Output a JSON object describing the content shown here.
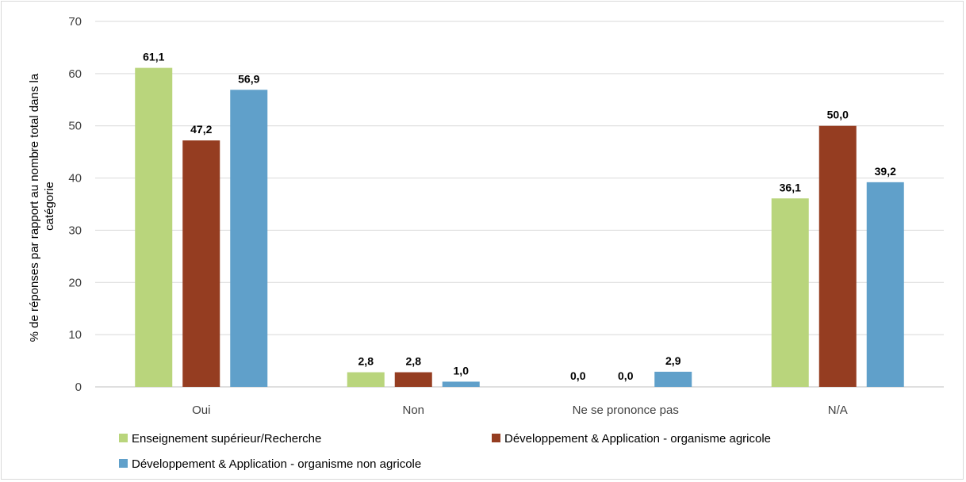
{
  "chart_data": {
    "type": "bar",
    "categories": [
      "Oui",
      "Non",
      "Ne se prononce pas",
      "N/A"
    ],
    "series": [
      {
        "name": "Enseignement supérieur/Recherche",
        "values": [
          61.1,
          2.8,
          0.0,
          36.1
        ],
        "labels": [
          "61,1",
          "2,8",
          "0,0",
          "36,1"
        ],
        "color": "#b9d57c"
      },
      {
        "name": "Développement & Application - organisme agricole",
        "values": [
          47.2,
          2.8,
          0.0,
          50.0
        ],
        "labels": [
          "47,2",
          "2,8",
          "0,0",
          "50,0"
        ],
        "color": "#953d21"
      },
      {
        "name": "Développement & Application - organisme non agricole",
        "values": [
          56.9,
          1.0,
          2.9,
          39.2
        ],
        "labels": [
          "56,9",
          "1,0",
          "2,9",
          "39,2"
        ],
        "color": "#60a0ca"
      }
    ],
    "ylabel_lines": [
      "% de réponses par rapport au nombre total dans la",
      "catégorie"
    ],
    "xlabel": "",
    "ylim": [
      0,
      70
    ],
    "yticks": [
      "0",
      "10",
      "20",
      "30",
      "40",
      "50",
      "60",
      "70"
    ],
    "ytick_values": [
      0,
      10,
      20,
      30,
      40,
      50,
      60,
      70
    ],
    "grid": true,
    "legend_position": "bottom"
  }
}
